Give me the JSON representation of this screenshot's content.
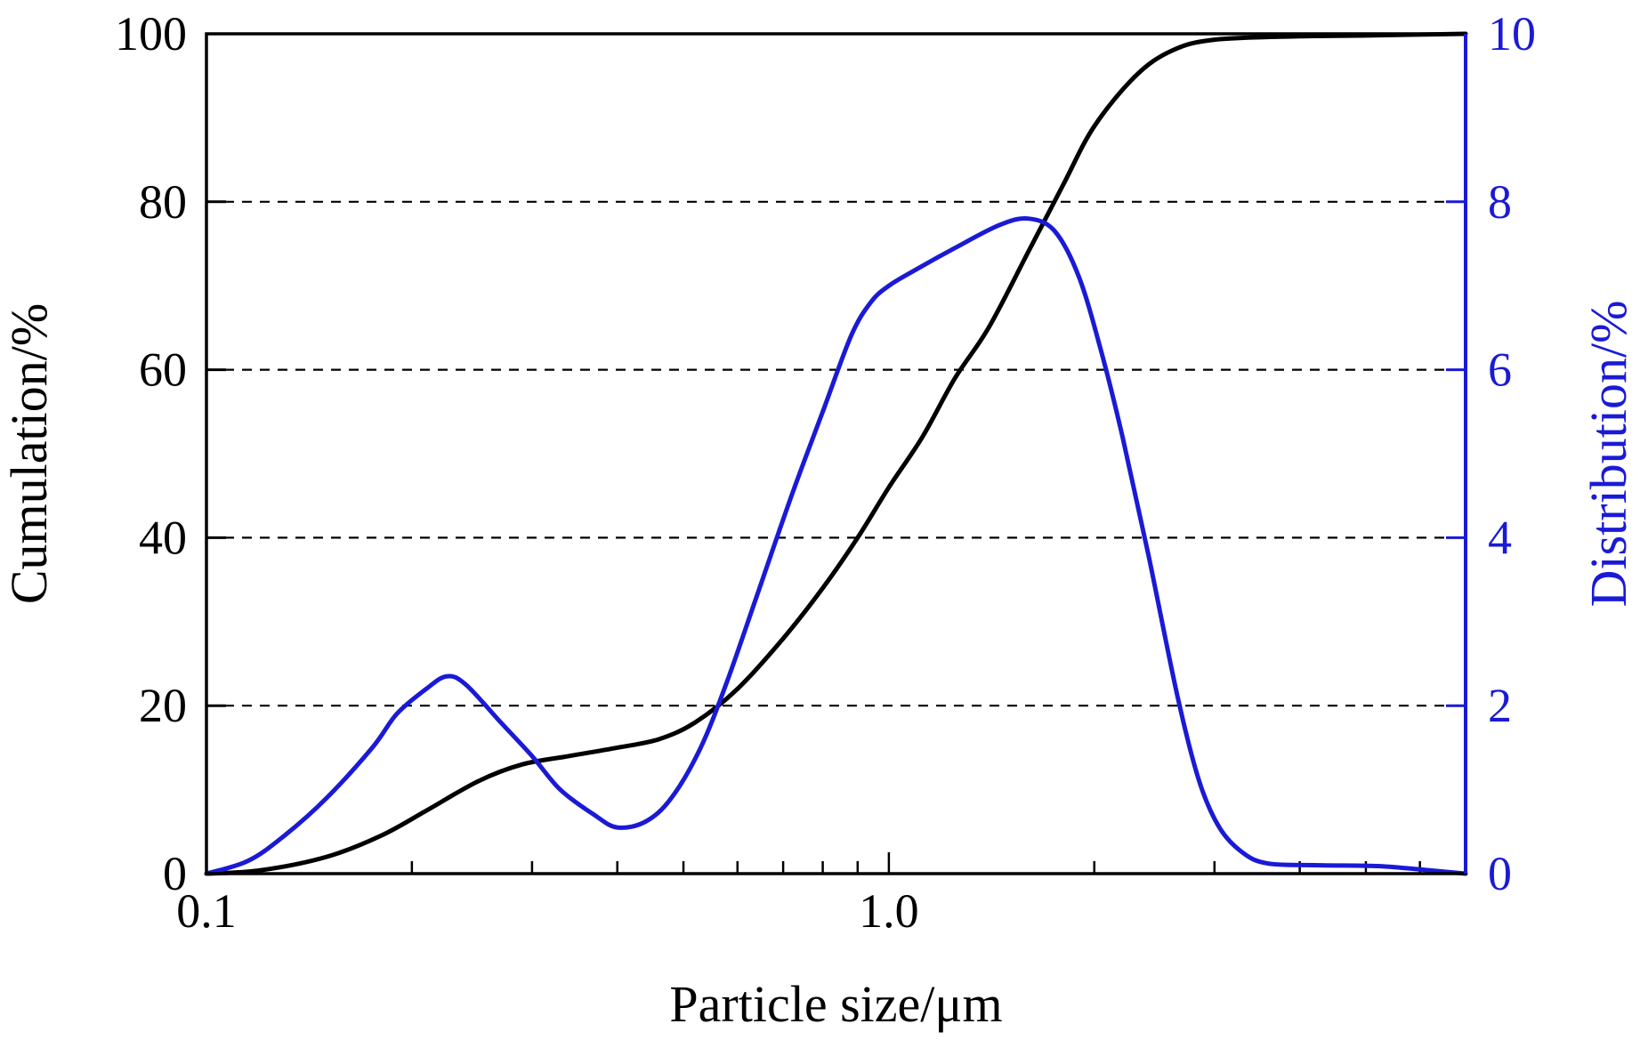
{
  "chart_data": {
    "type": "line",
    "xlabel": "Particle size/μm",
    "ylabel_left": "Cumulation/%",
    "ylabel_right": "Distribution/%",
    "x_scale": "log",
    "xlim": [
      0.1,
      7.0
    ],
    "ylim_left": [
      0,
      100
    ],
    "ylim_right": [
      0,
      10
    ],
    "x_tick_labels": [
      {
        "value": 0.1,
        "label": "0.1"
      },
      {
        "value": 1.0,
        "label": "1.0"
      }
    ],
    "y_left_ticks": [
      0,
      20,
      40,
      60,
      80,
      100
    ],
    "y_right_ticks": [
      0,
      2,
      4,
      6,
      8,
      10
    ],
    "grid": "dashed horizontal",
    "colors": {
      "cumulation": "#000000",
      "distribution": "#1a1ad6",
      "grid": "#000000"
    },
    "series": [
      {
        "axis": "left",
        "color": "#000000",
        "points": [
          [
            0.1,
            0
          ],
          [
            0.12,
            0.4
          ],
          [
            0.15,
            2
          ],
          [
            0.18,
            4.5
          ],
          [
            0.21,
            7.5
          ],
          [
            0.25,
            11
          ],
          [
            0.29,
            13
          ],
          [
            0.34,
            14
          ],
          [
            0.4,
            15
          ],
          [
            0.46,
            16
          ],
          [
            0.52,
            18
          ],
          [
            0.6,
            22
          ],
          [
            0.7,
            28
          ],
          [
            0.8,
            34
          ],
          [
            0.9,
            40
          ],
          [
            1.0,
            46
          ],
          [
            1.12,
            52
          ],
          [
            1.25,
            59
          ],
          [
            1.4,
            65
          ],
          [
            1.6,
            74
          ],
          [
            1.8,
            82
          ],
          [
            2.0,
            89
          ],
          [
            2.3,
            95
          ],
          [
            2.6,
            98
          ],
          [
            3.0,
            99.3
          ],
          [
            4.0,
            99.7
          ],
          [
            5.0,
            99.8
          ],
          [
            7.0,
            100
          ]
        ]
      },
      {
        "axis": "right",
        "color": "#1a1ad6",
        "points": [
          [
            0.1,
            0
          ],
          [
            0.115,
            0.15
          ],
          [
            0.13,
            0.45
          ],
          [
            0.15,
            0.9
          ],
          [
            0.175,
            1.5
          ],
          [
            0.19,
            1.9
          ],
          [
            0.21,
            2.2
          ],
          [
            0.225,
            2.35
          ],
          [
            0.24,
            2.25
          ],
          [
            0.27,
            1.8
          ],
          [
            0.3,
            1.4
          ],
          [
            0.33,
            1.0
          ],
          [
            0.37,
            0.7
          ],
          [
            0.4,
            0.55
          ],
          [
            0.44,
            0.62
          ],
          [
            0.48,
            0.9
          ],
          [
            0.53,
            1.5
          ],
          [
            0.58,
            2.3
          ],
          [
            0.64,
            3.3
          ],
          [
            0.72,
            4.5
          ],
          [
            0.8,
            5.5
          ],
          [
            0.88,
            6.4
          ],
          [
            0.94,
            6.8
          ],
          [
            1.0,
            7.0
          ],
          [
            1.1,
            7.2
          ],
          [
            1.25,
            7.45
          ],
          [
            1.45,
            7.72
          ],
          [
            1.6,
            7.8
          ],
          [
            1.75,
            7.65
          ],
          [
            1.9,
            7.1
          ],
          [
            2.05,
            6.2
          ],
          [
            2.2,
            5.2
          ],
          [
            2.4,
            3.8
          ],
          [
            2.65,
            2.1
          ],
          [
            2.85,
            1.1
          ],
          [
            3.05,
            0.55
          ],
          [
            3.3,
            0.25
          ],
          [
            3.6,
            0.12
          ],
          [
            4.3,
            0.1
          ],
          [
            5.2,
            0.09
          ],
          [
            6.0,
            0.05
          ],
          [
            7.0,
            0
          ]
        ]
      }
    ]
  }
}
